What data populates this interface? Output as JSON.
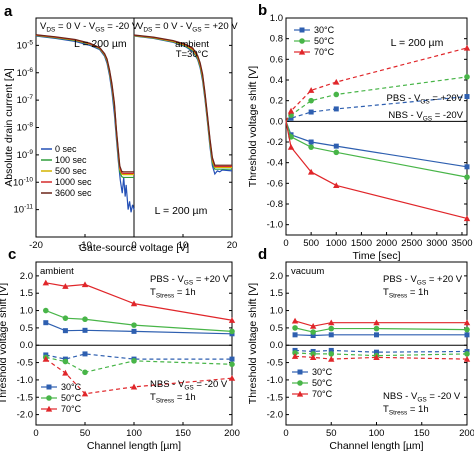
{
  "colors": {
    "c30": "#2e5fb0",
    "c50": "#48b548",
    "c70": "#e0262a",
    "t0": "#2450b6",
    "t100": "#2f9e3a",
    "t500": "#d3b300",
    "t1000": "#d42a2a",
    "t3600": "#6a2418"
  },
  "chart_data": [
    {
      "id": "a",
      "type": "line",
      "panel_label": "a",
      "xlabel": "Gate-source voltage [V]",
      "ylabel": "Absolute drain current [A]",
      "xlim_left": [
        -20,
        0
      ],
      "xlim_right": [
        0,
        20
      ],
      "ylog": true,
      "ylim": [
        1e-12,
        0.0001
      ],
      "xticks": [
        "-20",
        "-10",
        "0",
        "10",
        "20"
      ],
      "yticks": [
        "10-5",
        "10-6",
        "10-7",
        "10-8",
        "10-9",
        "10-10",
        "10-11"
      ],
      "left_condition": {
        "main": "V",
        "sub1": "DS",
        "mid": " = 0 V - V",
        "sub2": "GS",
        "tail": " = -20 V"
      },
      "right_condition": {
        "main": "V",
        "sub1": "DS",
        "mid": " = 0 V - V",
        "sub2": "GS",
        "tail": " = +20 V"
      },
      "note1": "L = 200 µm",
      "note2": "L = 200 µm",
      "env1": "ambient",
      "env2": "T=30°C",
      "legend": [
        "0 sec",
        "100 sec",
        "500 sec",
        "1000 sec",
        "3600 sec"
      ],
      "series_left": [
        {
          "name": "0 sec",
          "x": [
            -20,
            -16,
            -12,
            -9,
            -7,
            -6,
            -5.5,
            -5,
            -4.5,
            -4,
            -3.6,
            -3.2,
            -2.8,
            -2.4,
            -2.1,
            -1.8,
            -1.6,
            -1.2,
            -0.9,
            -0.6,
            -0.3,
            0
          ],
          "y": [
            2.2e-05,
            1.8e-05,
            1.4e-05,
            1e-05,
            7e-06,
            4e-06,
            2.2e-06,
            8e-07,
            2e-07,
            3e-08,
            4e-09,
            6e-10,
            1.2e-10,
            4e-11,
            1.5e-10,
            3e-11,
            8e-11,
            1e-11,
            2e-11,
            8e-12,
            1.5e-11,
            1e-11
          ]
        },
        {
          "name": "100 sec",
          "x": [
            -20,
            -16,
            -12,
            -9,
            -7,
            -6,
            -5.5,
            -5,
            -4.5,
            -4,
            -3.6,
            -3.2,
            -2.9,
            -2.5,
            -2.2,
            0
          ],
          "y": [
            2.3e-05,
            1.9e-05,
            1.5e-05,
            1.1e-05,
            7.5e-06,
            4.4e-06,
            2.6e-06,
            1e-06,
            2.8e-07,
            5e-08,
            6e-09,
            9e-10,
            2.4e-10,
            1.6e-10,
            1.5e-10,
            1.5e-10
          ]
        },
        {
          "name": "500 sec",
          "x": [
            -20,
            -16,
            -12,
            -9,
            -7,
            -6,
            -5.5,
            -5,
            -4.5,
            -4,
            -3.6,
            -3.2,
            -2.9,
            -2.5,
            -2.2,
            0
          ],
          "y": [
            2.35e-05,
            1.95e-05,
            1.55e-05,
            1.12e-05,
            7.8e-06,
            4.6e-06,
            2.8e-06,
            1.1e-06,
            3.2e-07,
            6e-08,
            7e-09,
            1.1e-09,
            3e-10,
            2e-10,
            1.9e-10,
            1.9e-10
          ]
        },
        {
          "name": "1000 sec",
          "x": [
            -20,
            -16,
            -12,
            -9,
            -7,
            -6,
            -5.5,
            -5,
            -4.5,
            -4,
            -3.6,
            -3.2,
            -2.9,
            -2.5,
            -2.2,
            0
          ],
          "y": [
            2.4e-05,
            2e-05,
            1.6e-05,
            1.15e-05,
            8e-06,
            4.8e-06,
            3e-06,
            1.2e-06,
            3.5e-07,
            7e-08,
            8e-09,
            1.3e-09,
            3.5e-10,
            2.2e-10,
            2.1e-10,
            2.1e-10
          ]
        },
        {
          "name": "3600 sec",
          "x": [
            -20,
            -16,
            -12,
            -9,
            -7,
            -6,
            -5.5,
            -5,
            -4.5,
            -4,
            -3.6,
            -3.2,
            -2.9,
            -2.5,
            -2.2,
            0
          ],
          "y": [
            2.45e-05,
            2.05e-05,
            1.65e-05,
            1.2e-05,
            8.3e-06,
            5e-06,
            3.2e-06,
            1.3e-06,
            4e-07,
            8e-08,
            9e-09,
            1.5e-09,
            4e-10,
            2.5e-10,
            2.4e-10,
            2.4e-10
          ]
        }
      ],
      "series_right": [
        {
          "name": "0 sec",
          "x": [
            0,
            4,
            8,
            10.5,
            12,
            13,
            13.5,
            14,
            14.5,
            15,
            15.5,
            16,
            16.5,
            17,
            17.5,
            18,
            20
          ],
          "y": [
            2.2e-05,
            1.8e-05,
            1.3e-05,
            9e-06,
            6e-06,
            3e-06,
            1.5e-06,
            5e-07,
            1e-07,
            1.5e-08,
            2e-09,
            4e-10,
            2e-10,
            2.6e-10,
            2.4e-10,
            2.8e-10,
            2.6e-10
          ]
        },
        {
          "name": "100 sec",
          "x": [
            0,
            4,
            8,
            10.5,
            12,
            13,
            13.5,
            14,
            14.5,
            15,
            15.5,
            16,
            16.5,
            20
          ],
          "y": [
            2.25e-05,
            1.85e-05,
            1.35e-05,
            9.5e-06,
            6.5e-06,
            3.3e-06,
            1.7e-06,
            6e-07,
            1.2e-07,
            1.8e-08,
            2.5e-09,
            5e-10,
            3e-10,
            3e-10
          ]
        },
        {
          "name": "500 sec",
          "x": [
            0,
            4,
            8,
            10.5,
            12,
            13,
            13.5,
            14,
            14.5,
            15,
            15.5,
            16,
            16.5,
            20
          ],
          "y": [
            2.3e-05,
            1.9e-05,
            1.4e-05,
            1e-05,
            7e-06,
            3.6e-06,
            1.9e-06,
            7e-07,
            1.4e-07,
            2.1e-08,
            3e-09,
            6e-10,
            3.5e-10,
            3.5e-10
          ]
        },
        {
          "name": "1000 sec",
          "x": [
            0,
            4,
            8,
            10.5,
            12,
            13,
            13.5,
            14,
            14.5,
            15,
            15.5,
            16,
            16.5,
            20
          ],
          "y": [
            2.35e-05,
            1.95e-05,
            1.45e-05,
            1.05e-05,
            7.5e-06,
            3.9e-06,
            2.1e-06,
            8e-07,
            1.6e-07,
            2.4e-08,
            3.5e-09,
            7e-10,
            3.8e-10,
            3.8e-10
          ]
        },
        {
          "name": "3600 sec",
          "x": [
            0,
            4,
            8,
            10.5,
            12,
            13,
            13.5,
            14,
            14.5,
            15,
            15.5,
            16,
            16.5,
            20
          ],
          "y": [
            2.4e-05,
            2e-05,
            1.5e-05,
            1.1e-05,
            8e-06,
            4.2e-06,
            2.3e-06,
            9e-07,
            1.8e-07,
            2.8e-08,
            4e-09,
            8e-10,
            4.2e-10,
            4.2e-10
          ]
        }
      ]
    },
    {
      "id": "b",
      "type": "line",
      "panel_label": "b",
      "xlabel": "Time [sec]",
      "ylabel": "Threshold voltage shift [V]",
      "xlim": [
        0,
        3600
      ],
      "ylim": [
        -1.1,
        1.0
      ],
      "xticks": [
        0,
        500,
        1000,
        1500,
        2000,
        2500,
        3000,
        3500
      ],
      "yticks": [
        1.0,
        0.8,
        0.6,
        0.4,
        0.2,
        0.0,
        -0.2,
        -0.4,
        -0.6,
        -0.8,
        -1.0
      ],
      "note": "L = 200 µm",
      "pbs_label": {
        "main": "PBS - V",
        "sub": "GS",
        "tail": " = +20V"
      },
      "nbs_label": {
        "main": "NBS - V",
        "sub": "GS",
        "tail": " = -20V"
      },
      "legend": [
        "30°C",
        "50°C",
        "70°C"
      ],
      "x": [
        0,
        100,
        500,
        1000,
        3600
      ],
      "series": [
        {
          "name": "30°C",
          "pbs": [
            0,
            0.03,
            0.09,
            0.12,
            0.24
          ],
          "nbs": [
            0,
            -0.13,
            -0.2,
            -0.24,
            -0.44
          ]
        },
        {
          "name": "50°C",
          "pbs": [
            0,
            0.06,
            0.2,
            0.26,
            0.43
          ],
          "nbs": [
            0,
            -0.15,
            -0.25,
            -0.3,
            -0.54
          ]
        },
        {
          "name": "70°C",
          "pbs": [
            0,
            0.1,
            0.3,
            0.38,
            0.71
          ],
          "nbs": [
            0,
            -0.25,
            -0.49,
            -0.62,
            -0.94
          ]
        }
      ]
    },
    {
      "id": "c",
      "type": "line",
      "panel_label": "c",
      "xlabel": "Channel length [µm]",
      "ylabel": "Threshold voltage shift [V]",
      "xlim": [
        0,
        200
      ],
      "ylim": [
        -2.3,
        2.4
      ],
      "xticks": [
        0,
        50,
        100,
        150,
        200
      ],
      "yticks": [
        2.0,
        1.5,
        1.0,
        0.5,
        0.0,
        -0.5,
        -1.0,
        -1.5,
        -2.0
      ],
      "env": "ambient",
      "pbs_label": {
        "main": "PBS - V",
        "sub": "GS",
        "tail": " = +20 V"
      },
      "pbs_time": {
        "main": "T",
        "sub": "Stress",
        "tail": " = 1h"
      },
      "nbs_label": {
        "main": "NBS - V",
        "sub": "GS",
        "tail": " = -20 V"
      },
      "nbs_time": {
        "main": "T",
        "sub": "Stress",
        "tail": " = 1h"
      },
      "legend": [
        "30°C",
        "50°C",
        "70°C"
      ],
      "x": [
        10,
        30,
        50,
        100,
        200
      ],
      "series": [
        {
          "name": "30°C",
          "pbs": [
            0.65,
            0.42,
            0.43,
            0.4,
            0.33
          ],
          "nbs": [
            -0.28,
            -0.4,
            -0.25,
            -0.4,
            -0.4
          ]
        },
        {
          "name": "50°C",
          "pbs": [
            1.0,
            0.78,
            0.75,
            0.58,
            0.4
          ],
          "nbs": [
            -0.35,
            -0.47,
            -0.78,
            -0.45,
            -0.55
          ]
        },
        {
          "name": "70°C",
          "pbs": [
            1.8,
            1.7,
            1.75,
            1.2,
            0.72
          ],
          "nbs": [
            -0.4,
            -0.8,
            -1.4,
            -1.2,
            -0.95
          ]
        }
      ]
    },
    {
      "id": "d",
      "type": "line",
      "panel_label": "d",
      "xlabel": "Channel length [µm]",
      "ylabel": "Threshold voltage shift [V]",
      "xlim": [
        0,
        200
      ],
      "ylim": [
        -2.3,
        2.4
      ],
      "xticks": [
        0,
        50,
        100,
        150,
        200
      ],
      "yticks": [
        2.0,
        1.5,
        1.0,
        0.5,
        0.0,
        -0.5,
        -1.0,
        -1.5,
        -2.0
      ],
      "env": "vacuum",
      "pbs_label": {
        "main": "PBS - V",
        "sub": "GS",
        "tail": " = +20 V"
      },
      "pbs_time": {
        "main": "T",
        "sub": "Stress",
        "tail": " = 1h"
      },
      "nbs_label": {
        "main": "NBS - V",
        "sub": "GS",
        "tail": " = -20 V"
      },
      "nbs_time": {
        "main": "T",
        "sub": "Stress",
        "tail": " = 1h"
      },
      "legend": [
        "30°C",
        "50°C",
        "70°C"
      ],
      "x": [
        10,
        30,
        50,
        100,
        200
      ],
      "series": [
        {
          "name": "30°C",
          "pbs": [
            0.3,
            0.28,
            0.3,
            0.3,
            0.3
          ],
          "nbs": [
            -0.15,
            -0.18,
            -0.15,
            -0.2,
            -0.18
          ]
        },
        {
          "name": "50°C",
          "pbs": [
            0.5,
            0.38,
            0.48,
            0.48,
            0.45
          ],
          "nbs": [
            -0.22,
            -0.25,
            -0.25,
            -0.3,
            -0.25
          ]
        },
        {
          "name": "70°C",
          "pbs": [
            0.7,
            0.55,
            0.65,
            0.65,
            0.65
          ],
          "nbs": [
            -0.32,
            -0.35,
            -0.4,
            -0.35,
            -0.4
          ]
        }
      ]
    }
  ]
}
